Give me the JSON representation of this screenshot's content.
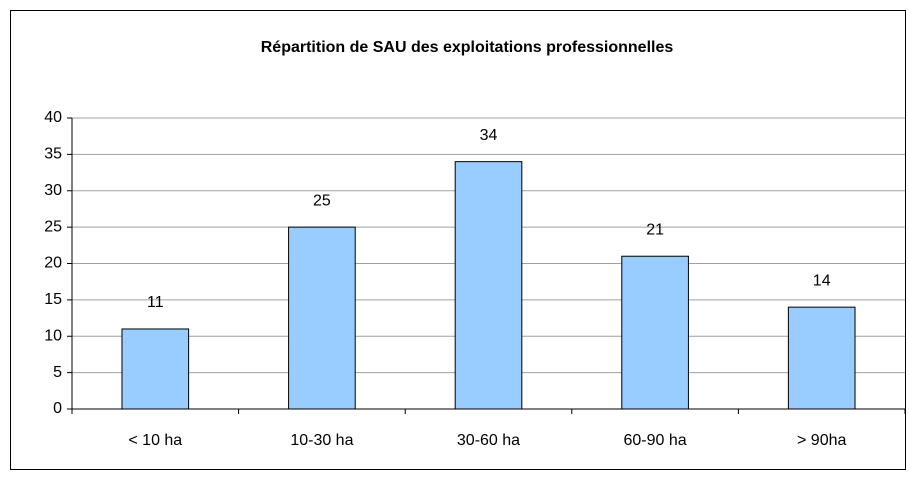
{
  "chart_data": {
    "type": "bar",
    "title": "Répartition de SAU des exploitations professionnelles",
    "categories": [
      "< 10 ha",
      "10-30 ha",
      "30-60 ha",
      "60-90 ha",
      "> 90ha"
    ],
    "values": [
      11,
      25,
      34,
      21,
      14
    ],
    "color": "#99ccff",
    "ylim": [
      0,
      40
    ],
    "yticks": [
      0,
      5,
      10,
      15,
      20,
      25,
      30,
      35,
      40
    ],
    "grid": true
  }
}
